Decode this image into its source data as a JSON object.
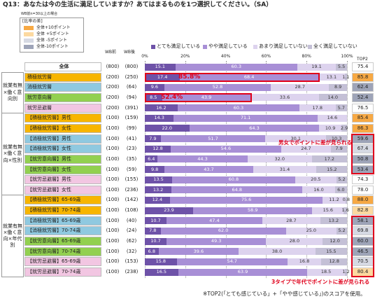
{
  "chart_data": {
    "type": "bar",
    "title": "Q13：あなたは今の生活に満足していますか？あてはまるものを1つ選択してください。（SA）",
    "difference_legend": {
      "note": "WB前n=30以上の場合",
      "title": "[比率の差]",
      "items": [
        {
          "label": "全体+10ポイント",
          "color": "#f7a944"
        },
        {
          "label": "全体 +5ポイント",
          "color": "#fcd9a0"
        },
        {
          "label": "全体 -5ポイント",
          "color": "#d6d9e3"
        },
        {
          "label": "全体-10ポイント",
          "color": "#9ea4b8"
        }
      ]
    },
    "column_headers": [
      "WB前",
      "WB後"
    ],
    "top2_label": "TOP2",
    "categories": [
      "全体",
      "積極就労層",
      "消極就労層",
      "就労意向層",
      "就労忌避層",
      "【積極就労層】男性",
      "【積極就労層】女性",
      "【消極就労層】男性",
      "【消極就労層】女性",
      "【就労意向層】男性",
      "【就労意向層】女性",
      "【就労忌避層】男性",
      "【就労忌避層】女性",
      "【積極就労層】65-69歳",
      "【積極就労層】70-74歳",
      "【消極就労層】65-69歳",
      "【消極就労層】70-74歳",
      "【就労意向層】65-69歳",
      "【就労意向層】70-74歳",
      "【就労忌避層】65-69歳",
      "【就労忌避層】70-74歳"
    ],
    "category_colors": [
      "#ffffff",
      "#f7b500",
      "#8fc9e0",
      "#92d050",
      "#f2c6e2",
      "#f7b500",
      "#f7b500",
      "#8fc9e0",
      "#8fc9e0",
      "#92d050",
      "#92d050",
      "#f2c6e2",
      "#f2c6e2",
      "#f7b500",
      "#f7b500",
      "#8fc9e0",
      "#8fc9e0",
      "#92d050",
      "#92d050",
      "#f2c6e2",
      "#f2c6e2"
    ],
    "groups": [
      {
        "label": "就業有無×働く意向別",
        "rows": [
          1,
          2,
          3,
          4
        ]
      },
      {
        "label": "就業有無×働く意向×性別",
        "rows": [
          5,
          6,
          7,
          8,
          9,
          10,
          11,
          12
        ]
      },
      {
        "label": "就業有無×働く意向×年代別",
        "rows": [
          13,
          14,
          15,
          16,
          17,
          18,
          19,
          20
        ]
      }
    ],
    "n_before": [
      "(800)",
      "(200)",
      "(200)",
      "(200)",
      "(200)",
      "(100)",
      "(100)",
      "(100)",
      "(100)",
      "(100)",
      "(100)",
      "(100)",
      "(100)",
      "(100)",
      "(100)",
      "(100)",
      "(100)",
      "(100)",
      "(100)",
      "(100)",
      "(100)"
    ],
    "n_after": [
      "(800)",
      "(250)",
      "(64)",
      "(94)",
      "(391)",
      "(159)",
      "(99)",
      "(41)",
      "(23)",
      "(35)",
      "(59)",
      "(155)",
      "(236)",
      "(142)",
      "(108)",
      "(40)",
      "(24)",
      "(62)",
      "(32)",
      "(153)",
      "(238)"
    ],
    "xlim": [
      0,
      100
    ],
    "xticks": [
      {
        "value": 0,
        "label": "0%"
      },
      {
        "value": 20,
        "label": "20%"
      },
      {
        "value": 40,
        "label": "40%"
      },
      {
        "value": 60,
        "label": "60%"
      },
      {
        "value": 80,
        "label": "80%"
      },
      {
        "value": 100,
        "label": "100%"
      }
    ],
    "grid": true,
    "series": [
      {
        "name": "とても満足している",
        "color": "#6e52a8",
        "label_color": "#ffffff",
        "values": [
          15.1,
          17.4,
          9.6,
          8.5,
          16.2,
          14.3,
          22.0,
          7.9,
          12.8,
          6.4,
          9.8,
          13.5,
          13.2,
          12.4,
          23.9,
          10.7,
          7.8,
          10.7,
          6.8,
          15.8,
          16.5
        ],
        "value_labels": [
          "15.1",
          "17.4",
          "9.6",
          "8.5",
          "16.2",
          "14.3",
          "22.0",
          "7.9",
          "12.8",
          "6.4",
          "9.8",
          "13.5",
          "13.2",
          "12.4",
          "23.9",
          "10.7",
          "7.8",
          "10.7",
          "6.8",
          "15.8",
          "16.5"
        ]
      },
      {
        "name": "やや満足している",
        "color": "#a88fd6",
        "label_color": "#ffffff",
        "values": [
          60.3,
          68.4,
          52.8,
          43.9,
          60.3,
          71.1,
          64.3,
          51.7,
          54.6,
          44.3,
          43.7,
          60.8,
          64.8,
          75.6,
          58.9,
          47.4,
          62.0,
          49.3,
          39.6,
          54.7,
          63.9
        ],
        "value_labels": [
          "60.3",
          "68.4",
          "52.8",
          "43.9",
          "60.3",
          "71.1",
          "64.3",
          "51.7",
          "54.6",
          "44.3",
          "43.7",
          "60.8",
          "64.8",
          "75.6",
          "58.9",
          "47.4",
          "62.0",
          "49.3",
          "39.6",
          "54.7",
          "63.9"
        ]
      },
      {
        "name": "あまり満足していない",
        "color": "#ddd3ee",
        "label_color": "#333333",
        "values": [
          19.1,
          13.1,
          28.7,
          33.6,
          17.8,
          14.6,
          10.9,
          30.1,
          24.7,
          32.0,
          31.4,
          20.5,
          16.0,
          11.2,
          15.6,
          28.7,
          25.0,
          28.0,
          38.0,
          16.8,
          18.5
        ],
        "value_labels": [
          "19.1",
          "13.1",
          "28.7",
          "33.6",
          "17.8",
          "14.6",
          "10.9",
          "30.1",
          "24.7",
          "32.0",
          "31.4",
          "20.5",
          "16.0",
          "11.2",
          "15.6",
          "28.7",
          "25.0",
          "28.0",
          "38.0",
          "16.8",
          "18.5"
        ]
      },
      {
        "name": "全く満足していない",
        "color": "#c4c0d6",
        "label_color": "#333333",
        "values": [
          5.5,
          1.1,
          8.9,
          14.0,
          5.7,
          0,
          2.9,
          10.3,
          7.9,
          17.2,
          15.2,
          5.2,
          6.0,
          0.8,
          1.6,
          13.2,
          5.2,
          12.0,
          15.5,
          12.8,
          1.2
        ],
        "value_labels": [
          "5.5",
          "1.1",
          "8.9",
          "14.0",
          "5.7",
          null,
          "2.9",
          "10.3",
          "7.9",
          "17.2",
          "15.2",
          "5.2",
          "6.0",
          "0.8",
          "1.6",
          "13.2",
          "5.2",
          "12.0",
          "15.5",
          "12.8",
          "1.2"
        ]
      }
    ],
    "top2": [
      "75.4",
      "85.8",
      "62.4",
      "52.4",
      "76.5",
      "85.4",
      "86.3",
      "59.6",
      "67.4",
      "50.8",
      "53.4",
      "74.3",
      "78.0",
      "88.0",
      "82.8",
      "58.1",
      "69.8",
      "60.0",
      "46.5",
      "70.5",
      "80.4"
    ],
    "top2_colors": [
      null,
      "#f7a944",
      "#9ea4b8",
      "#9ea4b8",
      null,
      "#f7a944",
      "#f7a944",
      "#9ea4b8",
      "#d6d9e3",
      "#9ea4b8",
      "#9ea4b8",
      null,
      null,
      "#f7a944",
      "#fcd9a0",
      "#9ea4b8",
      "#d6d9e3",
      "#9ea4b8",
      "#9ea4b8",
      "#d6d9e3",
      "#fcd9a0"
    ],
    "annotations": [
      "85.8%",
      "52.4%",
      "男女でポイントに差が見られる",
      "3タイプで年代でポイントに差が見られる"
    ],
    "footnote": "※TOP2(「とても感じている」+「やや感じている」)のスコアを使用。"
  }
}
